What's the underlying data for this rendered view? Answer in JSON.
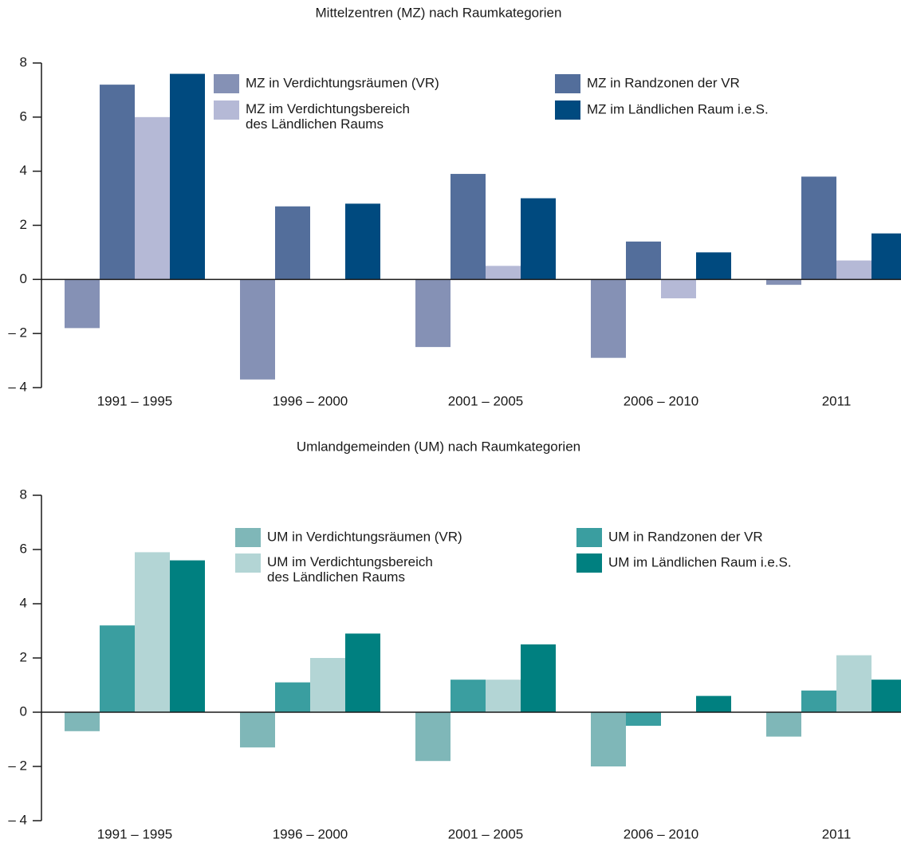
{
  "chart_data": [
    {
      "type": "bar",
      "title": "Mittelzentren (MZ) nach Raumkategorien",
      "categories": [
        "1991 – 1995",
        "1996 – 2000",
        "2001 – 2005",
        "2006 – 2010",
        "2011"
      ],
      "series": [
        {
          "name": "MZ in Verdichtungsräumen (VR)",
          "color": "#8591b5",
          "values": [
            -1.8,
            -3.7,
            -2.5,
            -2.9,
            -0.2
          ]
        },
        {
          "name": "MZ in Randzonen der VR",
          "color": "#536e9b",
          "values": [
            7.2,
            2.7,
            3.9,
            1.4,
            3.8
          ]
        },
        {
          "name": "MZ im Verdichtungsbereich\ndes Ländlichen Raums",
          "color": "#b5b9d6",
          "values": [
            6.0,
            0,
            0.5,
            -0.7,
            0.7
          ]
        },
        {
          "name": "MZ im Ländlichen Raum i.e.S.",
          "color": "#004a7f",
          "values": [
            7.6,
            2.8,
            3.0,
            1.0,
            1.7
          ]
        }
      ],
      "ylim": [
        -4,
        8
      ],
      "yticks": [
        {
          "value": -4,
          "label": "– 4"
        },
        {
          "value": -2,
          "label": "– 2"
        },
        0,
        2,
        4,
        6,
        8
      ]
    },
    {
      "type": "bar",
      "title": "Umlandgemeinden (UM) nach Raumkategorien",
      "categories": [
        "1991 – 1995",
        "1996 – 2000",
        "2001 – 2005",
        "2006 – 2010",
        "2011"
      ],
      "series": [
        {
          "name": "UM in Verdichtungsräumen (VR)",
          "color": "#7fb7b8",
          "values": [
            -0.7,
            -1.3,
            -1.8,
            -2.0,
            -0.9
          ]
        },
        {
          "name": "UM in Randzonen der VR",
          "color": "#3a9ea0",
          "values": [
            3.2,
            1.1,
            1.2,
            -0.5,
            0.8
          ]
        },
        {
          "name": "UM im Verdichtungsbereich\ndes Ländlichen Raums",
          "color": "#b3d5d5",
          "values": [
            5.9,
            2.0,
            1.2,
            0,
            2.1
          ]
        },
        {
          "name": "UM im Ländlichen Raum i.e.S.",
          "color": "#008080",
          "values": [
            5.6,
            2.9,
            2.5,
            0.6,
            1.2
          ]
        }
      ],
      "ylim": [
        -4,
        8
      ],
      "yticks": [
        {
          "value": -4,
          "label": "– 4"
        },
        {
          "value": -2,
          "label": "– 2"
        },
        0,
        2,
        4,
        6,
        8
      ]
    }
  ]
}
